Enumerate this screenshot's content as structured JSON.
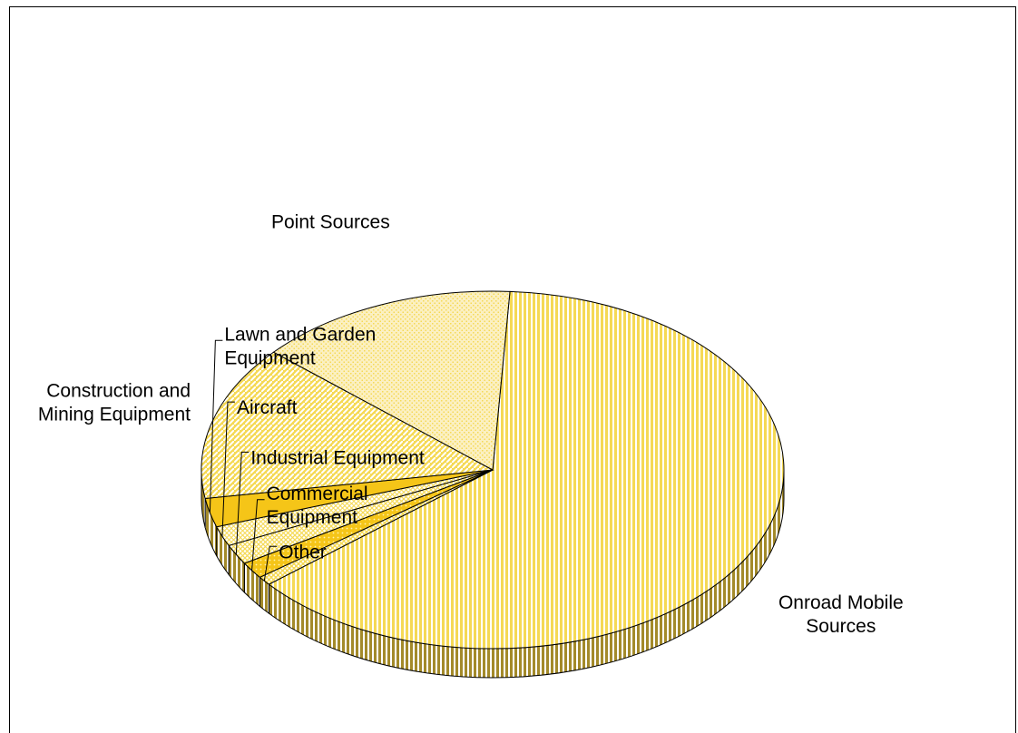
{
  "chart_data": {
    "type": "pie",
    "title": "",
    "legend": "none",
    "labels_style": "outside with leader lines",
    "slices": [
      {
        "name": "Onroad Mobile Sources",
        "value": 63.0,
        "label_lines": [
          "Onroad Mobile",
          "Sources"
        ],
        "color": "#f5d955",
        "pattern": "vertical"
      },
      {
        "name": "Other",
        "value": 0.8,
        "label_lines": [
          "Other"
        ],
        "color": "#f5d955",
        "pattern": "dots"
      },
      {
        "name": "Commercial Equipment",
        "value": 1.5,
        "label_lines": [
          "Commercial",
          "Equipment"
        ],
        "color": "#f5c518",
        "pattern": "dense-dots"
      },
      {
        "name": "Industrial Equipment",
        "value": 1.8,
        "label_lines": [
          "Industrial Equipment"
        ],
        "color": "#f5d955",
        "pattern": "crosshatch"
      },
      {
        "name": "Aircraft",
        "value": 1.8,
        "label_lines": [
          "Aircraft"
        ],
        "color": "#f5d955",
        "pattern": "diamond"
      },
      {
        "name": "Lawn and Garden Equipment",
        "value": 2.6,
        "label_lines": [
          "Lawn and Garden",
          "Equipment"
        ],
        "color": "#f5c518",
        "pattern": "solid"
      },
      {
        "name": "Construction and Mining Equipment",
        "value": 14.0,
        "label_lines": [
          "Construction and",
          "Mining Equipment"
        ],
        "color": "#f5d955",
        "pattern": "diagonal"
      },
      {
        "name": "Point Sources",
        "value": 14.5,
        "label_lines": [
          "Point Sources"
        ],
        "color": "#f5d955",
        "pattern": "fine-dots"
      }
    ]
  }
}
